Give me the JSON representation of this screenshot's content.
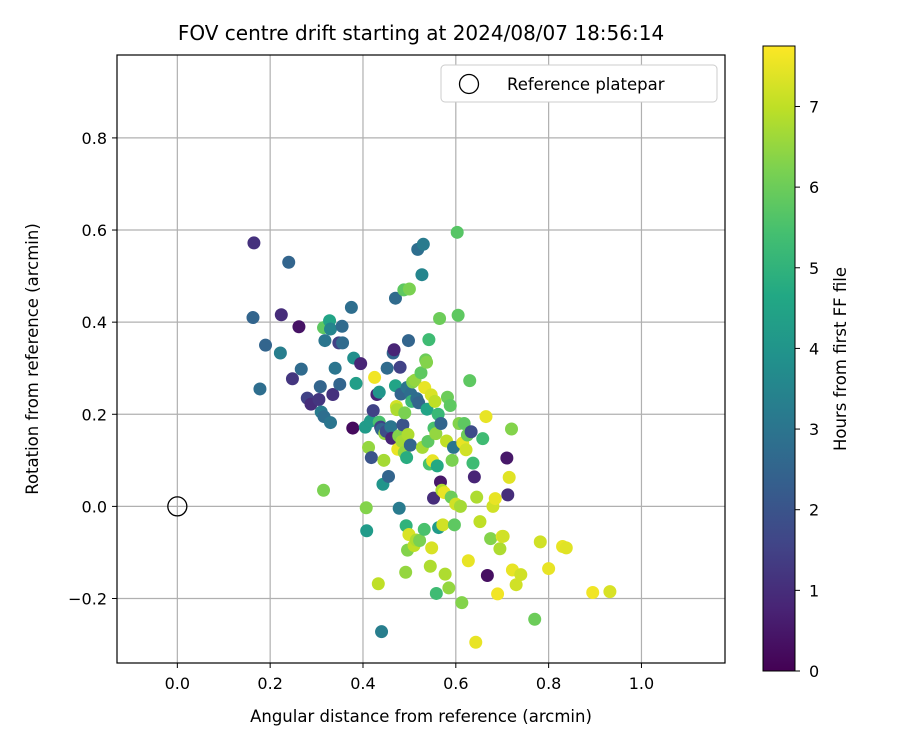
{
  "chart_data": {
    "type": "scatter",
    "title": "FOV centre drift starting at 2024/08/07 18:56:14",
    "xlabel": "Angular distance from reference (arcmin)",
    "ylabel": "Rotation from reference (arcmin)",
    "xlim": [
      -0.13,
      1.18
    ],
    "ylim": [
      -0.34,
      0.98
    ],
    "xticks": [
      "0.0",
      "0.2",
      "0.4",
      "0.6",
      "0.8",
      "1.0"
    ],
    "yticks": [
      "0.8",
      "0.6",
      "0.4",
      "0.2",
      "0.0",
      "−0.2"
    ],
    "grid": true,
    "legend": {
      "label": "Reference platepar",
      "position": "top-right"
    },
    "reference_point": {
      "x": 0.0,
      "y": 0.0
    },
    "colorbar": {
      "label": "Hours from first FF file",
      "min": 0,
      "max": 7.75,
      "ticks": [
        "0",
        "1",
        "2",
        "3",
        "4",
        "5",
        "6",
        "7"
      ],
      "colormap": "viridis"
    },
    "points": [
      {
        "x": 0.165,
        "y": 0.572,
        "h": 1.1
      },
      {
        "x": 0.163,
        "y": 0.41,
        "h": 2.5
      },
      {
        "x": 0.178,
        "y": 0.255,
        "h": 2.8
      },
      {
        "x": 0.19,
        "y": 0.35,
        "h": 2.5
      },
      {
        "x": 0.222,
        "y": 0.333,
        "h": 3.3
      },
      {
        "x": 0.224,
        "y": 0.416,
        "h": 1.0
      },
      {
        "x": 0.24,
        "y": 0.53,
        "h": 2.5
      },
      {
        "x": 0.248,
        "y": 0.277,
        "h": 1.2
      },
      {
        "x": 0.262,
        "y": 0.39,
        "h": 0.4
      },
      {
        "x": 0.267,
        "y": 0.298,
        "h": 2.7
      },
      {
        "x": 0.28,
        "y": 0.235,
        "h": 1.5
      },
      {
        "x": 0.288,
        "y": 0.222,
        "h": 1.0
      },
      {
        "x": 0.305,
        "y": 0.232,
        "h": 1.2
      },
      {
        "x": 0.308,
        "y": 0.26,
        "h": 2.5
      },
      {
        "x": 0.31,
        "y": 0.205,
        "h": 3.2
      },
      {
        "x": 0.315,
        "y": 0.388,
        "h": 5.8
      },
      {
        "x": 0.316,
        "y": 0.195,
        "h": 2.8
      },
      {
        "x": 0.318,
        "y": 0.36,
        "h": 3.0
      },
      {
        "x": 0.328,
        "y": 0.403,
        "h": 4.5
      },
      {
        "x": 0.33,
        "y": 0.385,
        "h": 3.5
      },
      {
        "x": 0.33,
        "y": 0.182,
        "h": 3.0
      },
      {
        "x": 0.335,
        "y": 0.243,
        "h": 1.1
      },
      {
        "x": 0.34,
        "y": 0.3,
        "h": 3.0
      },
      {
        "x": 0.348,
        "y": 0.355,
        "h": 1.5
      },
      {
        "x": 0.35,
        "y": 0.265,
        "h": 2.5
      },
      {
        "x": 0.355,
        "y": 0.391,
        "h": 2.7
      },
      {
        "x": 0.356,
        "y": 0.355,
        "h": 2.7
      },
      {
        "x": 0.315,
        "y": 0.035,
        "h": 6.2
      },
      {
        "x": 0.375,
        "y": 0.432,
        "h": 2.8
      },
      {
        "x": 0.378,
        "y": 0.17,
        "h": 0.2
      },
      {
        "x": 0.38,
        "y": 0.322,
        "h": 3.8
      },
      {
        "x": 0.385,
        "y": 0.267,
        "h": 4.3
      },
      {
        "x": 0.395,
        "y": 0.31,
        "h": 0.8
      },
      {
        "x": 0.405,
        "y": 0.172,
        "h": 4.2
      },
      {
        "x": 0.407,
        "y": -0.003,
        "h": 6.3
      },
      {
        "x": 0.408,
        "y": -0.053,
        "h": 4.2
      },
      {
        "x": 0.412,
        "y": 0.128,
        "h": 6.5
      },
      {
        "x": 0.416,
        "y": 0.185,
        "h": 4.2
      },
      {
        "x": 0.418,
        "y": 0.106,
        "h": 2.0
      },
      {
        "x": 0.422,
        "y": 0.208,
        "h": 1.5
      },
      {
        "x": 0.425,
        "y": 0.28,
        "h": 7.6
      },
      {
        "x": 0.43,
        "y": 0.243,
        "h": 0.8
      },
      {
        "x": 0.433,
        "y": -0.168,
        "h": 7.0
      },
      {
        "x": 0.435,
        "y": 0.248,
        "h": 4.0
      },
      {
        "x": 0.435,
        "y": 0.183,
        "h": 5.5
      },
      {
        "x": 0.438,
        "y": 0.172,
        "h": 1.5
      },
      {
        "x": 0.44,
        "y": -0.272,
        "h": 3.3
      },
      {
        "x": 0.44,
        "y": 0.167,
        "h": 2.5
      },
      {
        "x": 0.443,
        "y": 0.048,
        "h": 4.0
      },
      {
        "x": 0.445,
        "y": 0.1,
        "h": 6.7
      },
      {
        "x": 0.447,
        "y": 0.158,
        "h": 6.5
      },
      {
        "x": 0.45,
        "y": 0.163,
        "h": 1.8
      },
      {
        "x": 0.452,
        "y": 0.3,
        "h": 2.7
      },
      {
        "x": 0.455,
        "y": 0.065,
        "h": 2.5
      },
      {
        "x": 0.46,
        "y": 0.173,
        "h": 3.0
      },
      {
        "x": 0.462,
        "y": 0.148,
        "h": 0.8
      },
      {
        "x": 0.465,
        "y": 0.333,
        "h": 2.5
      },
      {
        "x": 0.467,
        "y": 0.34,
        "h": 0.8
      },
      {
        "x": 0.47,
        "y": 0.452,
        "h": 2.7
      },
      {
        "x": 0.47,
        "y": 0.262,
        "h": 4.5
      },
      {
        "x": 0.472,
        "y": 0.217,
        "h": 7.2
      },
      {
        "x": 0.473,
        "y": 0.21,
        "h": 6.8
      },
      {
        "x": 0.475,
        "y": 0.124,
        "h": 7.5
      },
      {
        "x": 0.477,
        "y": 0.153,
        "h": 6.3
      },
      {
        "x": 0.478,
        "y": -0.004,
        "h": 3.2
      },
      {
        "x": 0.48,
        "y": 0.302,
        "h": 1.5
      },
      {
        "x": 0.482,
        "y": 0.244,
        "h": 2.5
      },
      {
        "x": 0.484,
        "y": 0.141,
        "h": 6.7
      },
      {
        "x": 0.486,
        "y": 0.177,
        "h": 2.0
      },
      {
        "x": 0.488,
        "y": 0.47,
        "h": 5.8
      },
      {
        "x": 0.489,
        "y": 0.117,
        "h": 6.5
      },
      {
        "x": 0.49,
        "y": 0.203,
        "h": 6.2
      },
      {
        "x": 0.492,
        "y": -0.143,
        "h": 6.5
      },
      {
        "x": 0.493,
        "y": -0.042,
        "h": 5.0
      },
      {
        "x": 0.494,
        "y": 0.106,
        "h": 4.8
      },
      {
        "x": 0.495,
        "y": 0.258,
        "h": 3.0
      },
      {
        "x": 0.496,
        "y": -0.095,
        "h": 6.3
      },
      {
        "x": 0.497,
        "y": 0.156,
        "h": 6.8
      },
      {
        "x": 0.498,
        "y": 0.36,
        "h": 2.5
      },
      {
        "x": 0.499,
        "y": -0.061,
        "h": 7.3
      },
      {
        "x": 0.5,
        "y": 0.472,
        "h": 6.2
      },
      {
        "x": 0.502,
        "y": 0.133,
        "h": 2.5
      },
      {
        "x": 0.503,
        "y": 0.244,
        "h": 2.8
      },
      {
        "x": 0.505,
        "y": 0.228,
        "h": 5.2
      },
      {
        "x": 0.507,
        "y": 0.27,
        "h": 6.3
      },
      {
        "x": 0.51,
        "y": -0.085,
        "h": 7.0
      },
      {
        "x": 0.512,
        "y": 0.274,
        "h": 6.5
      },
      {
        "x": 0.515,
        "y": -0.073,
        "h": 6.8
      },
      {
        "x": 0.516,
        "y": 0.234,
        "h": 2.8
      },
      {
        "x": 0.518,
        "y": 0.558,
        "h": 2.8
      },
      {
        "x": 0.52,
        "y": 0.225,
        "h": 2.5
      },
      {
        "x": 0.522,
        "y": -0.074,
        "h": 6.2
      },
      {
        "x": 0.525,
        "y": 0.29,
        "h": 5.8
      },
      {
        "x": 0.527,
        "y": 0.503,
        "h": 3.5
      },
      {
        "x": 0.528,
        "y": 0.128,
        "h": 6.7
      },
      {
        "x": 0.53,
        "y": 0.569,
        "h": 3.2
      },
      {
        "x": 0.532,
        "y": -0.05,
        "h": 5.5
      },
      {
        "x": 0.533,
        "y": 0.258,
        "h": 7.5
      },
      {
        "x": 0.535,
        "y": 0.318,
        "h": 6.0
      },
      {
        "x": 0.537,
        "y": 0.313,
        "h": 6.3
      },
      {
        "x": 0.538,
        "y": 0.211,
        "h": 4.5
      },
      {
        "x": 0.54,
        "y": 0.141,
        "h": 5.8
      },
      {
        "x": 0.542,
        "y": 0.362,
        "h": 5.3
      },
      {
        "x": 0.543,
        "y": 0.092,
        "h": 5.5
      },
      {
        "x": 0.545,
        "y": -0.13,
        "h": 6.8
      },
      {
        "x": 0.547,
        "y": 0.242,
        "h": 7.3
      },
      {
        "x": 0.548,
        "y": -0.09,
        "h": 7.3
      },
      {
        "x": 0.55,
        "y": 0.099,
        "h": 7.5
      },
      {
        "x": 0.552,
        "y": 0.018,
        "h": 1.0
      },
      {
        "x": 0.553,
        "y": 0.17,
        "h": 5.5
      },
      {
        "x": 0.555,
        "y": 0.228,
        "h": 7.0
      },
      {
        "x": 0.557,
        "y": 0.158,
        "h": 6.5
      },
      {
        "x": 0.558,
        "y": -0.189,
        "h": 5.3
      },
      {
        "x": 0.56,
        "y": 0.088,
        "h": 4.7
      },
      {
        "x": 0.562,
        "y": 0.2,
        "h": 5.2
      },
      {
        "x": 0.563,
        "y": -0.046,
        "h": 4.2
      },
      {
        "x": 0.565,
        "y": 0.408,
        "h": 6.0
      },
      {
        "x": 0.567,
        "y": 0.053,
        "h": 0.5
      },
      {
        "x": 0.568,
        "y": 0.18,
        "h": 2.5
      },
      {
        "x": 0.57,
        "y": 0.035,
        "h": 6.8
      },
      {
        "x": 0.572,
        "y": -0.04,
        "h": 7.2
      },
      {
        "x": 0.575,
        "y": 0.03,
        "h": 7.5
      },
      {
        "x": 0.577,
        "y": -0.147,
        "h": 6.8
      },
      {
        "x": 0.58,
        "y": 0.142,
        "h": 7.0
      },
      {
        "x": 0.582,
        "y": 0.237,
        "h": 6.0
      },
      {
        "x": 0.585,
        "y": -0.177,
        "h": 6.5
      },
      {
        "x": 0.588,
        "y": 0.219,
        "h": 5.8
      },
      {
        "x": 0.59,
        "y": 0.02,
        "h": 6.0
      },
      {
        "x": 0.592,
        "y": 0.1,
        "h": 6.2
      },
      {
        "x": 0.595,
        "y": 0.128,
        "h": 3.0
      },
      {
        "x": 0.597,
        "y": -0.04,
        "h": 5.8
      },
      {
        "x": 0.6,
        "y": 0.005,
        "h": 7.2
      },
      {
        "x": 0.603,
        "y": 0.595,
        "h": 5.7
      },
      {
        "x": 0.605,
        "y": 0.415,
        "h": 5.8
      },
      {
        "x": 0.607,
        "y": 0.18,
        "h": 6.3
      },
      {
        "x": 0.61,
        "y": 0.0,
        "h": 6.7
      },
      {
        "x": 0.613,
        "y": -0.209,
        "h": 6.3
      },
      {
        "x": 0.615,
        "y": 0.138,
        "h": 7.5
      },
      {
        "x": 0.618,
        "y": 0.18,
        "h": 5.8
      },
      {
        "x": 0.622,
        "y": 0.123,
        "h": 7.2
      },
      {
        "x": 0.625,
        "y": 0.155,
        "h": 6.0
      },
      {
        "x": 0.627,
        "y": -0.118,
        "h": 7.5
      },
      {
        "x": 0.63,
        "y": 0.273,
        "h": 5.8
      },
      {
        "x": 0.633,
        "y": 0.162,
        "h": 1.8
      },
      {
        "x": 0.637,
        "y": 0.094,
        "h": 5.3
      },
      {
        "x": 0.64,
        "y": 0.064,
        "h": 0.8
      },
      {
        "x": 0.643,
        "y": -0.295,
        "h": 7.5
      },
      {
        "x": 0.645,
        "y": 0.02,
        "h": 6.8
      },
      {
        "x": 0.652,
        "y": -0.033,
        "h": 7.0
      },
      {
        "x": 0.658,
        "y": 0.147,
        "h": 5.3
      },
      {
        "x": 0.665,
        "y": 0.195,
        "h": 7.5
      },
      {
        "x": 0.668,
        "y": -0.15,
        "h": 0.3
      },
      {
        "x": 0.675,
        "y": -0.07,
        "h": 6.3
      },
      {
        "x": 0.68,
        "y": 0.0,
        "h": 7.2
      },
      {
        "x": 0.685,
        "y": 0.017,
        "h": 7.5
      },
      {
        "x": 0.69,
        "y": -0.19,
        "h": 7.6
      },
      {
        "x": 0.695,
        "y": -0.092,
        "h": 6.8
      },
      {
        "x": 0.7,
        "y": -0.065,
        "h": 7.5
      },
      {
        "x": 0.702,
        "y": -0.065,
        "h": 7.2
      },
      {
        "x": 0.71,
        "y": 0.105,
        "h": 0.5
      },
      {
        "x": 0.712,
        "y": 0.025,
        "h": 1.0
      },
      {
        "x": 0.715,
        "y": 0.063,
        "h": 7.4
      },
      {
        "x": 0.72,
        "y": 0.168,
        "h": 6.3
      },
      {
        "x": 0.722,
        "y": -0.138,
        "h": 7.5
      },
      {
        "x": 0.73,
        "y": -0.17,
        "h": 7.2
      },
      {
        "x": 0.74,
        "y": -0.148,
        "h": 7.2
      },
      {
        "x": 0.77,
        "y": -0.245,
        "h": 6.0
      },
      {
        "x": 0.782,
        "y": -0.077,
        "h": 7.2
      },
      {
        "x": 0.8,
        "y": -0.135,
        "h": 7.5
      },
      {
        "x": 0.83,
        "y": -0.087,
        "h": 7.5
      },
      {
        "x": 0.838,
        "y": -0.09,
        "h": 7.4
      },
      {
        "x": 0.895,
        "y": -0.187,
        "h": 7.6
      },
      {
        "x": 0.932,
        "y": -0.185,
        "h": 7.3
      }
    ]
  }
}
